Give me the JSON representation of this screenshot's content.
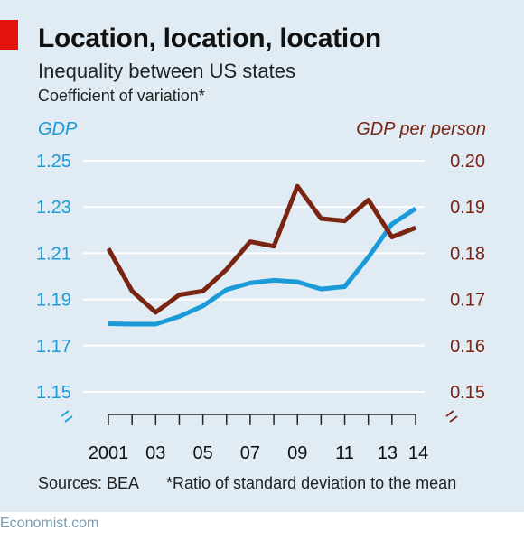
{
  "header": {
    "title": "Location, location, location",
    "subtitle": "Inequality between US states",
    "note": "Coefficient of variation*"
  },
  "footer": {
    "source": "Sources: BEA",
    "footnote": "*Ratio of standard deviation to the mean"
  },
  "brand": "Economist.com",
  "colors": {
    "background": "#e0ebf3",
    "accent": "#e3120b",
    "gdp": "#1a9bd7",
    "gdp_per_person": "#7a2412"
  },
  "chart_data": {
    "type": "line",
    "title": "Location, location, location",
    "subtitle": "Inequality between US states",
    "x": [
      2001,
      2002,
      2003,
      2004,
      2005,
      2006,
      2007,
      2008,
      2009,
      2010,
      2011,
      2012,
      2013,
      2014
    ],
    "x_tick_labels": [
      "2001",
      "03",
      "05",
      "07",
      "09",
      "11",
      "13",
      "14"
    ],
    "x_tick_years": [
      2001,
      2003,
      2005,
      2007,
      2009,
      2011,
      2013,
      2014
    ],
    "left_axis": {
      "label": "GDP",
      "ylim": [
        1.15,
        1.25
      ],
      "ticks": [
        1.15,
        1.17,
        1.19,
        1.21,
        1.23,
        1.25
      ],
      "tick_labels": [
        "1.15",
        "1.17",
        "1.19",
        "1.21",
        "1.23",
        "1.25"
      ],
      "broken": true
    },
    "right_axis": {
      "label": "GDP per person",
      "ylim": [
        0.15,
        0.2
      ],
      "ticks": [
        0.15,
        0.16,
        0.17,
        0.18,
        0.19,
        0.2
      ],
      "tick_labels": [
        "0.15",
        "0.16",
        "0.17",
        "0.18",
        "0.19",
        "0.20"
      ],
      "broken": true
    },
    "grid": true,
    "series": [
      {
        "name": "GDP",
        "axis": "left",
        "color": "#1a9bd7",
        "values": [
          1.1795,
          1.1793,
          1.1793,
          1.1826,
          1.1872,
          1.1942,
          1.1971,
          1.1983,
          1.1976,
          1.1945,
          1.1955,
          1.2083,
          1.2226,
          1.2293
        ]
      },
      {
        "name": "GDP per person",
        "axis": "right",
        "color": "#7a2412",
        "values": [
          0.181,
          0.1718,
          0.1672,
          0.171,
          0.1718,
          0.1765,
          0.1825,
          0.1815,
          0.1945,
          0.1875,
          0.187,
          0.1915,
          0.1835,
          0.1855
        ]
      }
    ]
  }
}
